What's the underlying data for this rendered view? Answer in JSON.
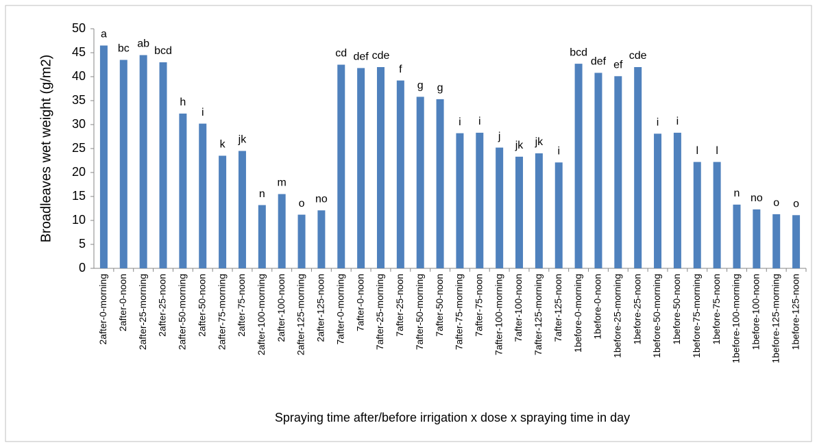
{
  "chart_data": {
    "type": "bar",
    "y_label": "Broadleaves wet weight (g/m2)",
    "x_label": "Spraying time after/before irrigation x dose x spraying time in day",
    "categories": [
      "2after-0-morning",
      "2after-0-noon",
      "2after-25-morning",
      "2after-25-noon",
      "2after-50-morning",
      "2after-50-noon",
      "2after-75-morning",
      "2after-75-noon",
      "2after-100-morning",
      "2after-100-noon",
      "2after-125-morning",
      "2after-125-noon",
      "7after-0-morning",
      "7after-0-noon",
      "7after-25-morning",
      "7after-25-noon",
      "7after-50-morning",
      "7after-50-noon",
      "7after-75-morning",
      "7after-75-noon",
      "7after-100-morning",
      "7after-100-noon",
      "7after-125-morning",
      "7after-125-noon",
      "1before-0-morning",
      "1before-0-noon",
      "1before-25-morning",
      "1before-25-noon",
      "1before-50-morning",
      "1before-50-noon",
      "1before-75-morning",
      "1before-75-noon",
      "1before-100-morning",
      "1before-100-noon",
      "1before-125-morning",
      "1before-125-noon"
    ],
    "values": [
      46.5,
      43.5,
      44.5,
      43,
      32.3,
      30.2,
      23.5,
      24.5,
      13.2,
      15.5,
      11.2,
      12.1,
      42.5,
      41.8,
      42,
      39.2,
      35.8,
      35.3,
      28.2,
      28.3,
      25.2,
      23.3,
      24,
      22.1,
      42.7,
      40.8,
      40.1,
      42,
      28.1,
      28.3,
      22.2,
      22.2,
      13.3,
      12.3,
      11.3,
      11.1
    ],
    "annotations": [
      "a",
      "bc",
      "ab",
      "bcd",
      "h",
      "i",
      "k",
      "jk",
      "n",
      "m",
      "o",
      "no",
      "cd",
      "def",
      "cde",
      "f",
      "g",
      "g",
      "i",
      "i",
      "j",
      "jk",
      "jk",
      "i",
      "bcd",
      "def",
      "ef",
      "cde",
      "i",
      "i",
      "l",
      "l",
      "n",
      "no",
      "o",
      "o"
    ],
    "color": "#4f81bd",
    "ylim": [
      0,
      50
    ],
    "yticks": [
      0,
      5,
      10,
      15,
      20,
      25,
      30,
      35,
      40,
      45,
      50
    ],
    "grid": false
  }
}
